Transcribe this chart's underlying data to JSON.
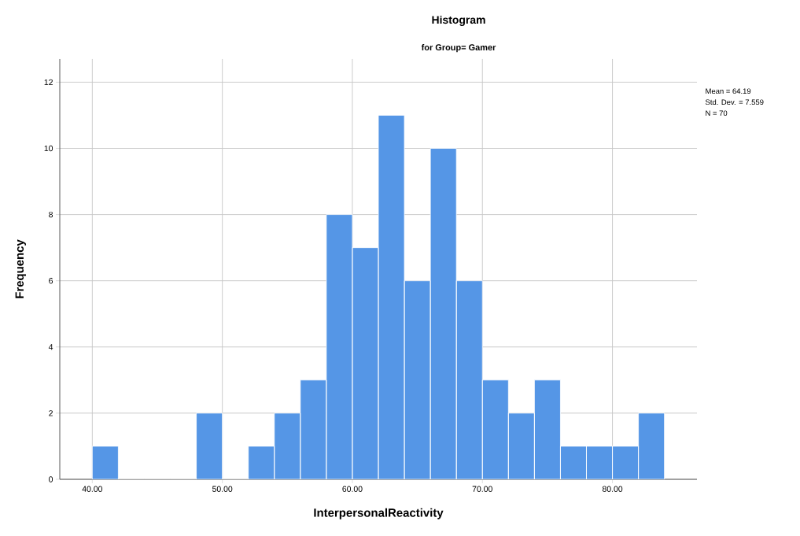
{
  "chart_data": {
    "type": "histogram",
    "title": "Histogram",
    "subtitle": "for Group= Gamer",
    "xlabel": "InterpersonalReactivity",
    "ylabel": "Frequency",
    "bins": [
      40,
      42,
      44,
      46,
      48,
      50,
      52,
      54,
      56,
      58,
      60,
      62,
      64,
      66,
      68,
      70,
      72,
      74,
      76,
      78,
      80,
      82,
      84
    ],
    "values": [
      1,
      0,
      0,
      0,
      2,
      0,
      1,
      2,
      3,
      8,
      7,
      11,
      6,
      10,
      6,
      3,
      2,
      3,
      1,
      1,
      1,
      2
    ],
    "color": "#5596e6",
    "xlim": [
      37.5,
      86.5
    ],
    "ylim": [
      0,
      12.7
    ],
    "xticks": [
      {
        "value": 40,
        "label": "40.00"
      },
      {
        "value": 50,
        "label": "50.00"
      },
      {
        "value": 60,
        "label": "60.00"
      },
      {
        "value": 70,
        "label": "70.00"
      },
      {
        "value": 80,
        "label": "80.00"
      }
    ],
    "yticks": [
      0,
      2,
      4,
      6,
      8,
      10,
      12
    ],
    "grid": true,
    "annotations": [
      "Mean = 64.19",
      "Std. Dev. = 7.559",
      "N = 70"
    ]
  }
}
